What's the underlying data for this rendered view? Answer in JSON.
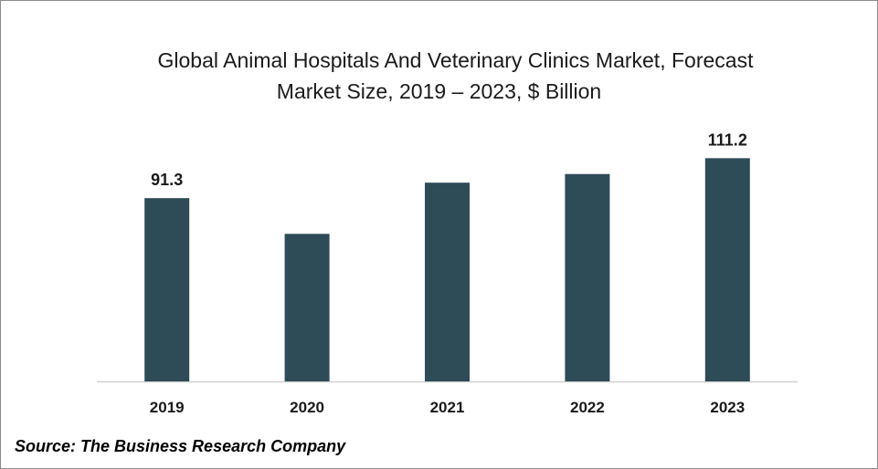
{
  "chart_data": {
    "type": "bar",
    "title": "Global Animal Hospitals And Veterinary Clinics Market, Forecast",
    "subtitle": "Market Size, 2019 – 2023, $ Billion",
    "categories": [
      "2019",
      "2020",
      "2021",
      "2022",
      "2023"
    ],
    "values": [
      91.3,
      73.5,
      99.0,
      103.3,
      111.2
    ],
    "data_labels": [
      "91.3",
      "",
      "",
      "",
      "111.2"
    ],
    "ylim": [
      0,
      125
    ],
    "grid": false,
    "legend": "none",
    "bar_color": "#2e4b58"
  },
  "source": "Source: The Business Research Company"
}
